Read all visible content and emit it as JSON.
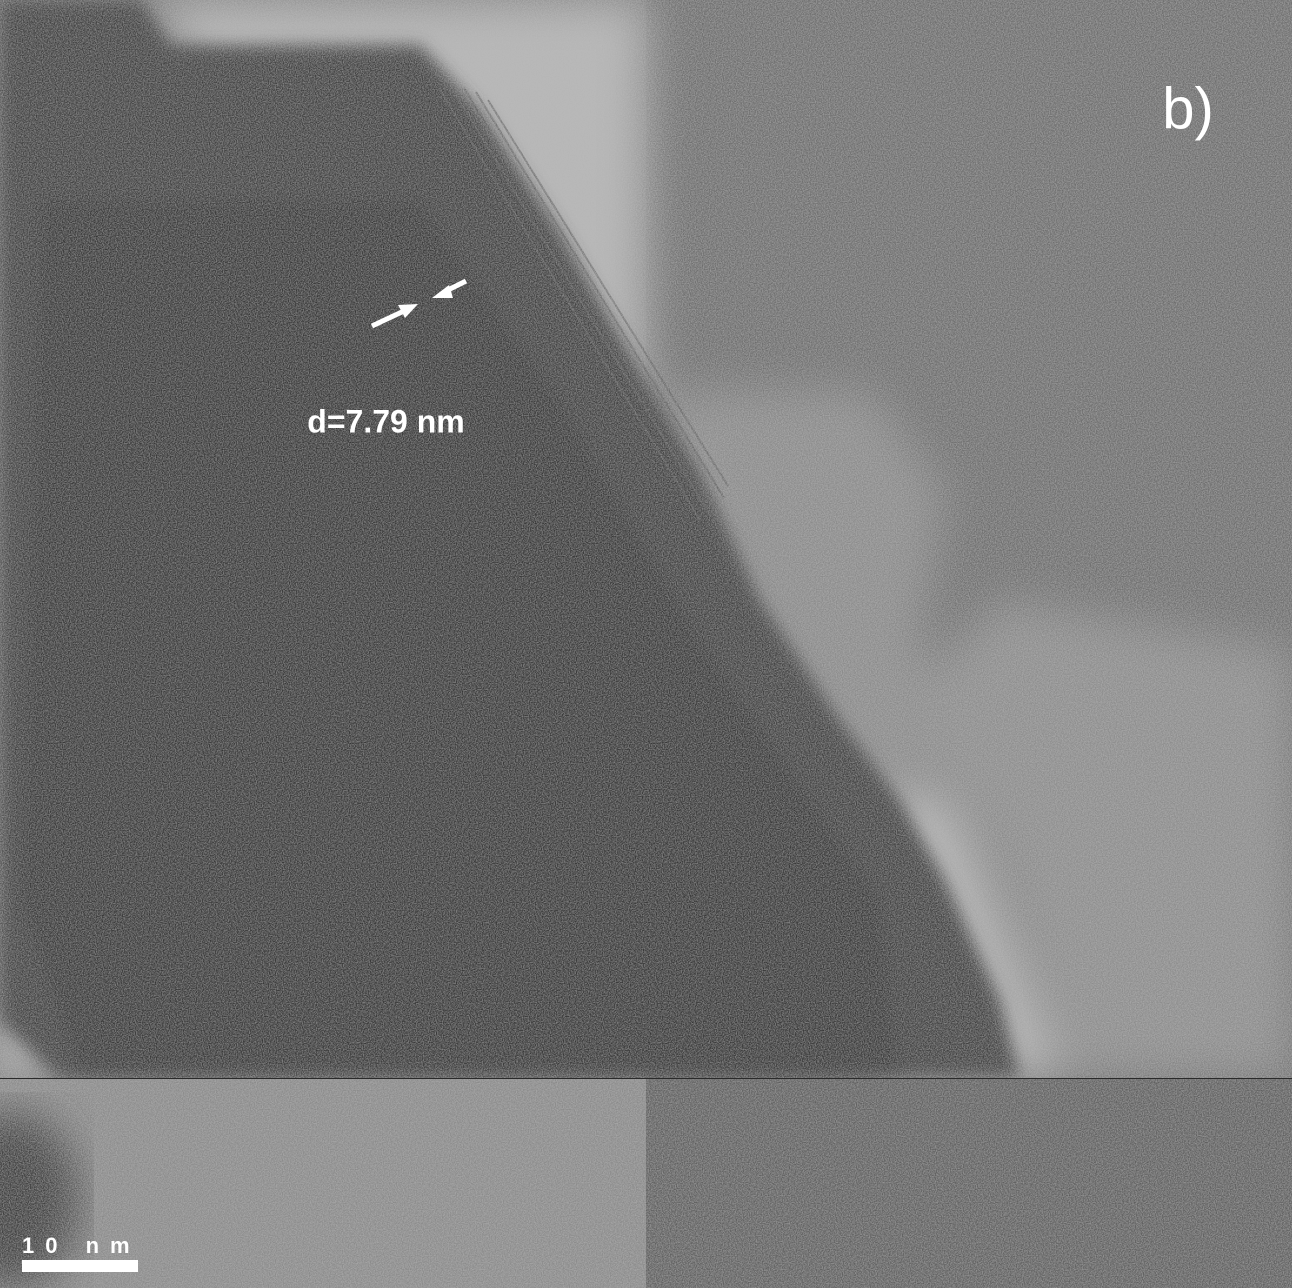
{
  "panel_label": "b)",
  "annotation": "d=7.79 nm",
  "scale_bar": {
    "label": "10 nm"
  }
}
